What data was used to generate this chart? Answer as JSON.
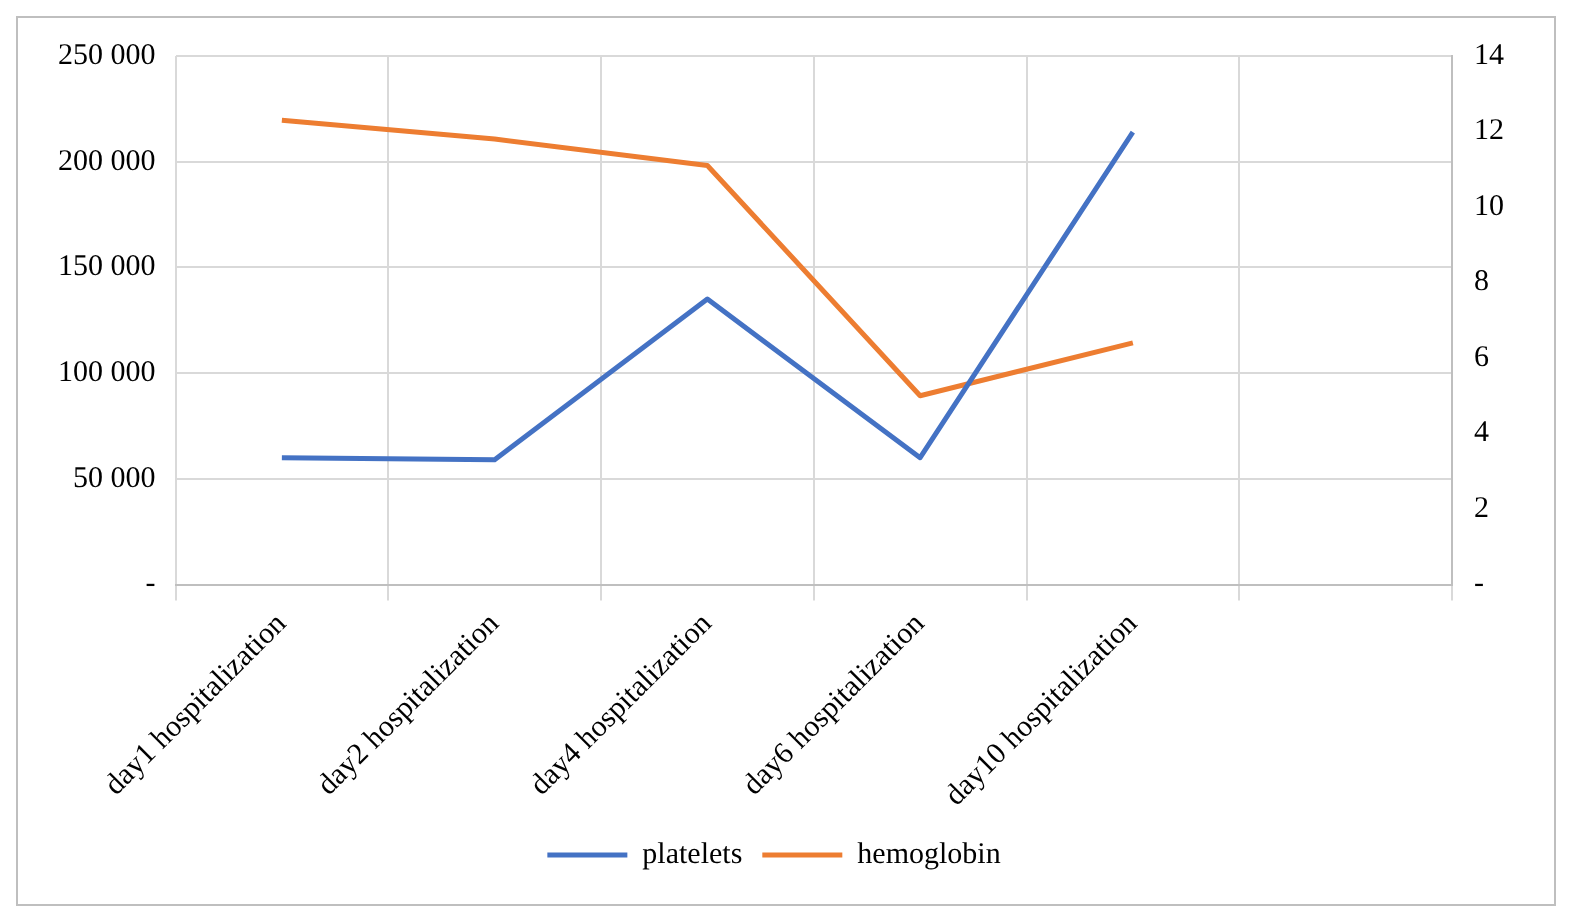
{
  "chart_data": {
    "type": "line",
    "categories": [
      "day1 hospitalization",
      "day2 hospitalization",
      "day4 hospitalization",
      "day6 hospitalization",
      "day10 hospitalization",
      null
    ],
    "series": [
      {
        "name": "platelets",
        "color": "#4472c4",
        "values": [
          60000,
          59000,
          135000,
          60000,
          214000,
          null
        ]
      },
      {
        "name": "hemoglobin",
        "color": "#ed7d31",
        "axis": "y2",
        "values": [
          12.3,
          11.8,
          11.1,
          5.0,
          6.4,
          null
        ]
      }
    ],
    "ylim": [
      0,
      250000
    ],
    "yticks": [
      {
        "value": 0,
        "label": "-"
      },
      {
        "value": 50000,
        "label": "50 000"
      },
      {
        "value": 100000,
        "label": "100 000"
      },
      {
        "value": 150000,
        "label": "150 000"
      },
      {
        "value": 200000,
        "label": "200 000"
      },
      {
        "value": 250000,
        "label": "250 000"
      }
    ],
    "y2lim": [
      0,
      14
    ],
    "y2ticks": [
      {
        "value": 0,
        "label": "-"
      },
      2,
      4,
      6,
      8,
      10,
      12,
      14
    ],
    "grid": true,
    "legend": "bottom",
    "marker": "none",
    "line_style": "solid"
  }
}
